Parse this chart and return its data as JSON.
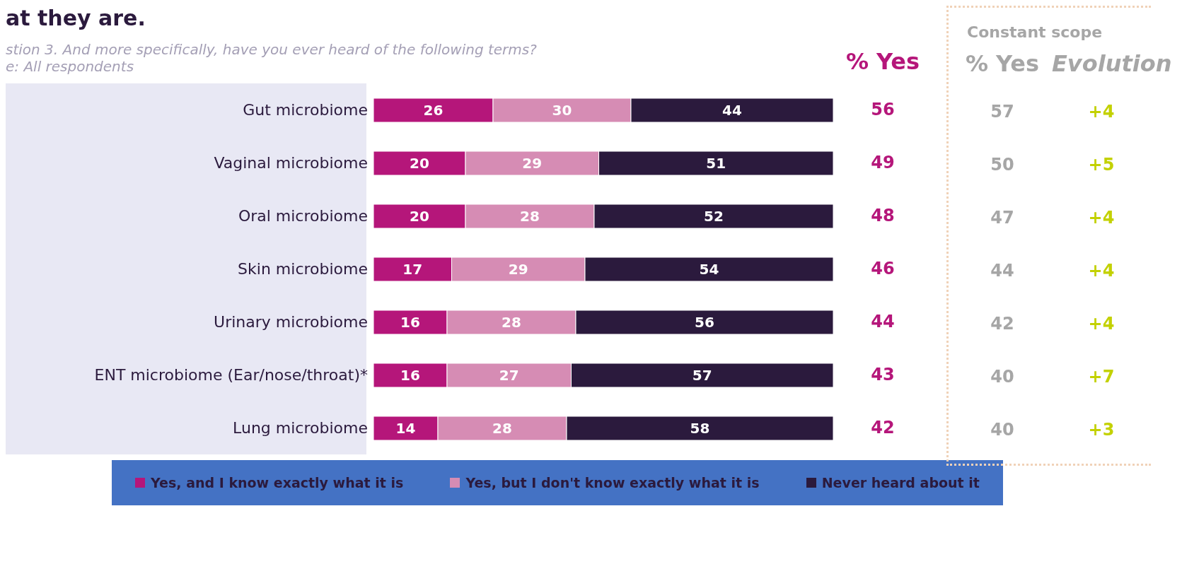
{
  "chart_data": [
    {
      "type": "bar",
      "orientation": "horizontal",
      "stacked": true,
      "title": "at they are.",
      "subtitle": "stion 3. And more specifically, have you ever heard of the following terms?\ne: All respondents",
      "categories": [
        "Gut microbiome",
        "Vaginal microbiome",
        "Oral microbiome",
        "Skin microbiome",
        "Urinary microbiome",
        "ENT microbiome (Ear/nose/throat)*",
        "Lung microbiome"
      ],
      "series": [
        {
          "name": "Yes, and I know exactly what it is",
          "color": "#b5167a",
          "values": [
            26,
            20,
            20,
            17,
            16,
            16,
            14
          ]
        },
        {
          "name": "Yes, but I don't know exactly what it is",
          "color": "#d68cb4",
          "values": [
            30,
            29,
            28,
            29,
            28,
            27,
            28
          ]
        },
        {
          "name": "Never heard about it",
          "color": "#2b1a3d",
          "values": [
            44,
            51,
            52,
            54,
            56,
            57,
            58
          ]
        }
      ],
      "data_labels": true,
      "legend": "bottom",
      "tick_labels": "y",
      "grid": false
    },
    {
      "type": "other",
      "categories": [
        null,
        null,
        null,
        null,
        null,
        null,
        null
      ],
      "series": [
        {
          "name": "% Yes",
          "color": "#b5167a",
          "values": [
            56,
            49,
            48,
            46,
            44,
            43,
            42
          ]
        }
      ],
      "data_labels": true
    },
    {
      "type": "other",
      "title": "Constant scope",
      "categories": [
        null,
        null,
        null,
        null,
        null,
        null,
        null
      ],
      "series": [
        {
          "name": "% Yes",
          "color": "#a6a6a6",
          "values": [
            57,
            50,
            47,
            44,
            42,
            40,
            40
          ]
        }
      ],
      "data_labels": true
    },
    {
      "type": "other",
      "title": "Evolution",
      "annotations": [
        "+4",
        "+5",
        "+4",
        "+4",
        "+4",
        "+7",
        "+3"
      ]
    }
  ]
}
